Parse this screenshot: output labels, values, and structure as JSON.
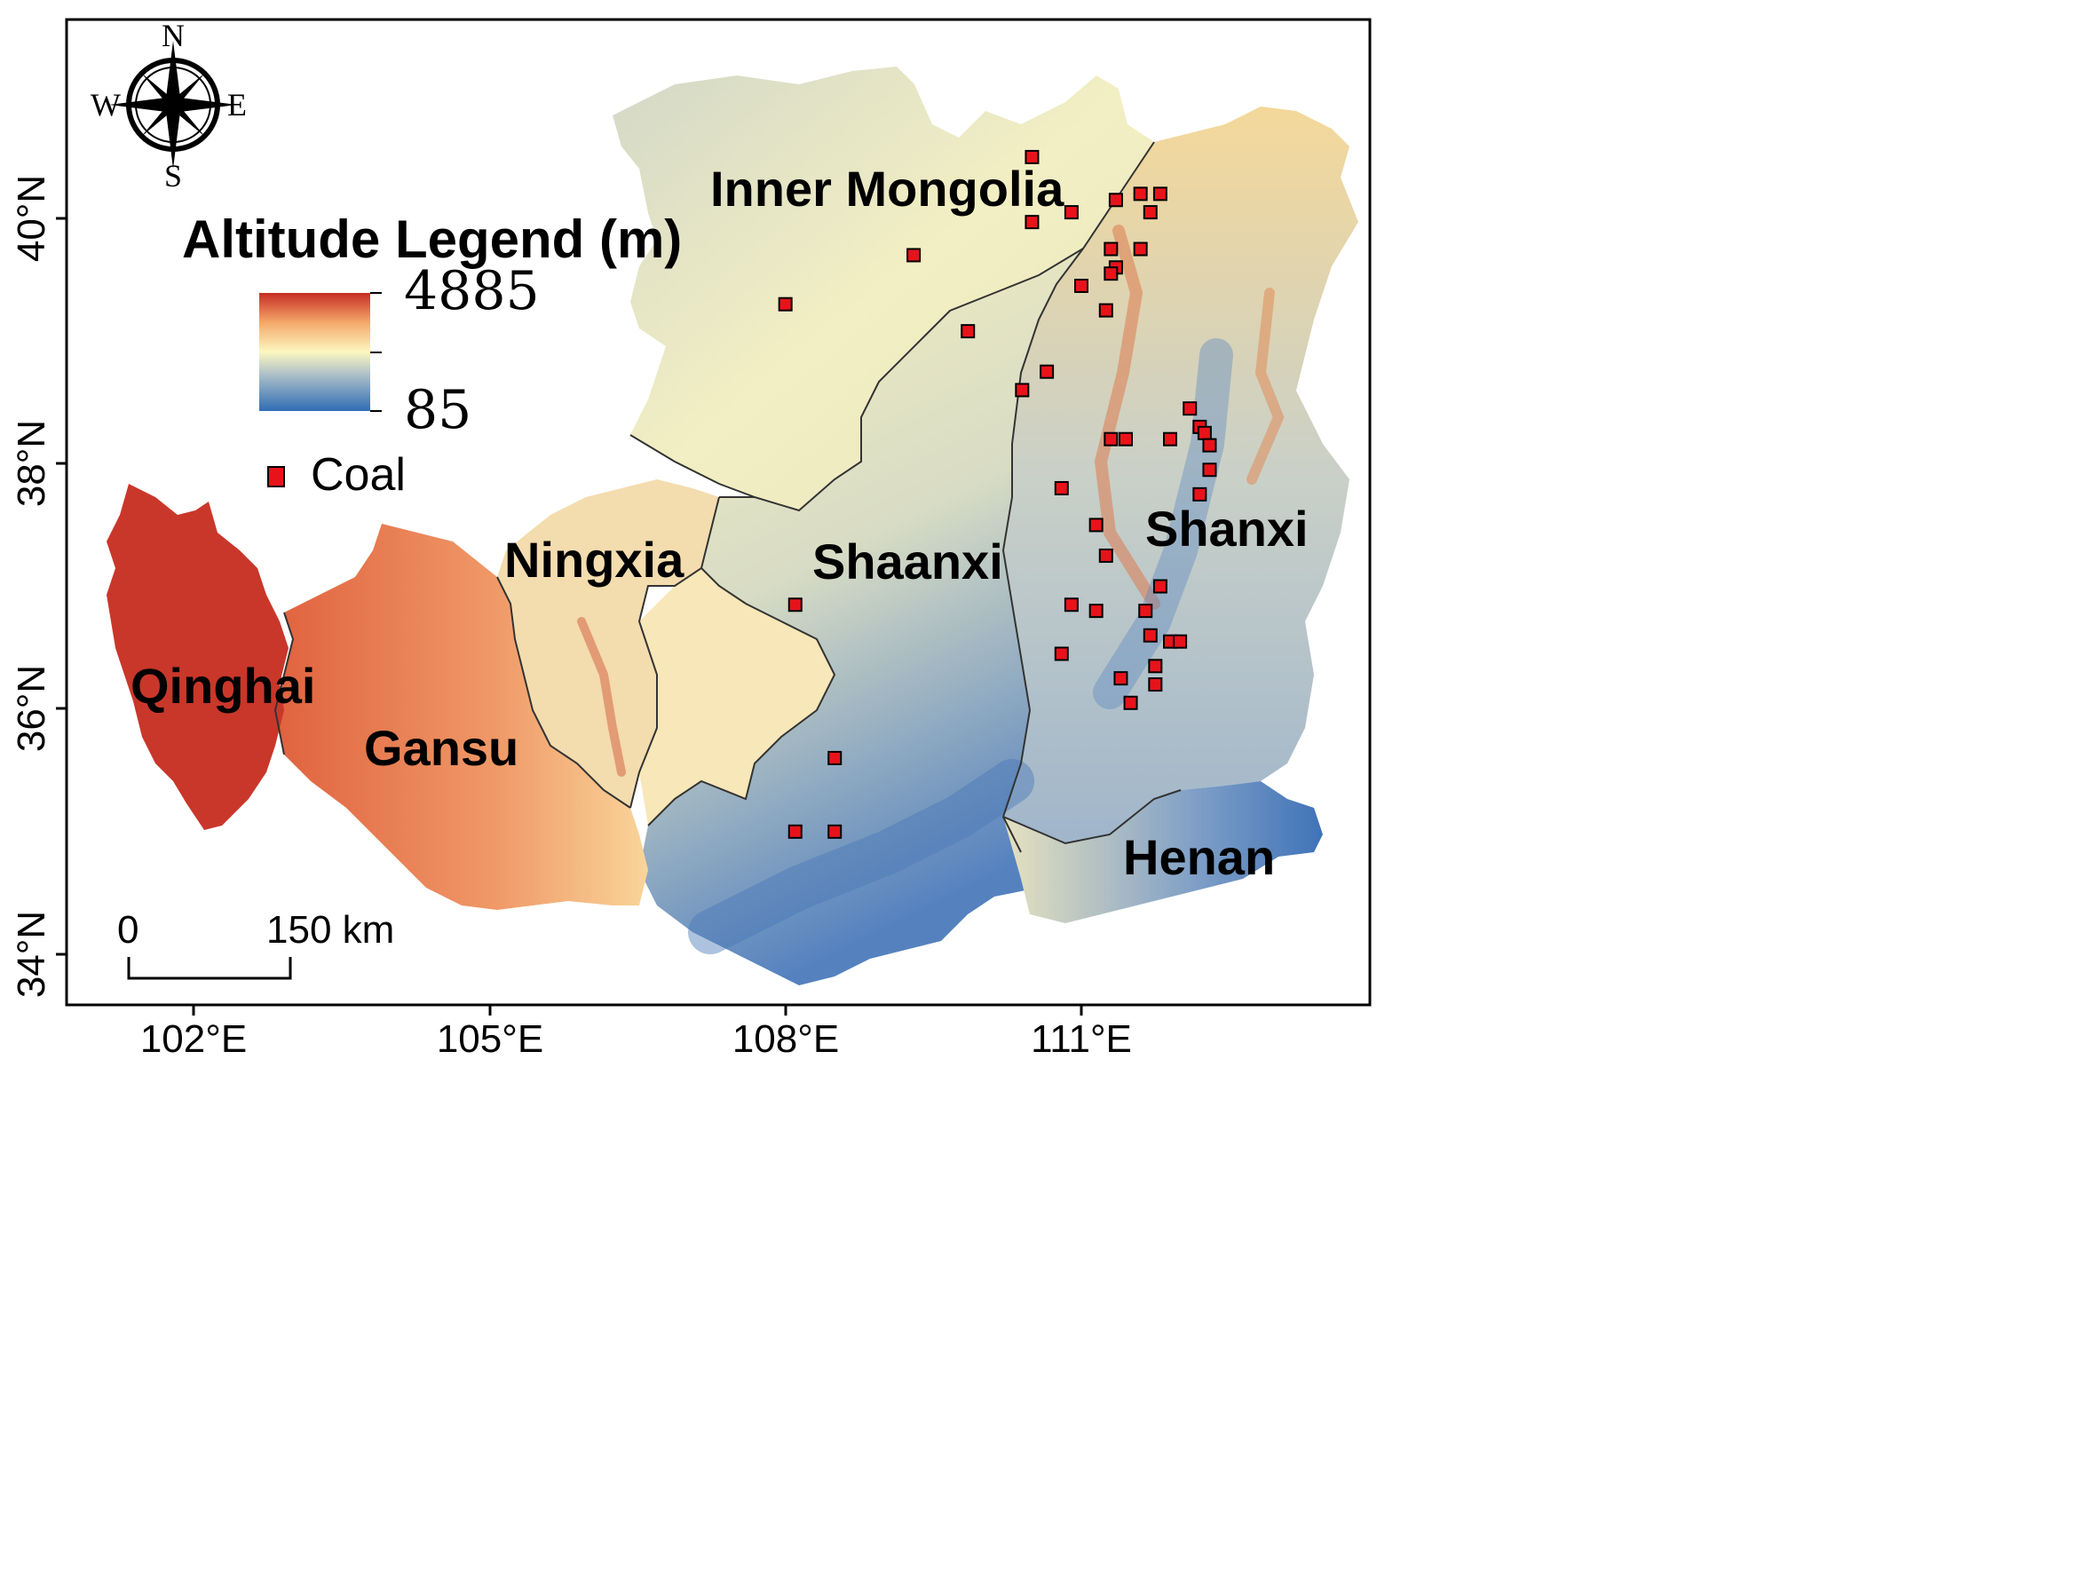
{
  "map": {
    "compass": {
      "n": "N",
      "s": "S",
      "e": "E",
      "w": "W",
      "icon": "compass-rose-icon"
    },
    "legend": {
      "title": "Altitude Legend (m)",
      "max": "4885",
      "min": "85",
      "coal_label": "Coal",
      "coal_color": "#e8131a",
      "ramp": [
        "#2f6db5",
        "#a9bdc8",
        "#fcf7c0",
        "#f4a86a",
        "#c72d24"
      ]
    },
    "scale_bar": {
      "start": "0",
      "end": "150 km"
    },
    "lon_ticks": [
      "102°E",
      "105°E",
      "108°E",
      "111°E"
    ],
    "lat_ticks": [
      "40°N",
      "38°N",
      "36°N",
      "34°N"
    ],
    "provinces": [
      "Inner Mongolia",
      "Shaanxi",
      "Shanxi",
      "Ningxia",
      "Qinghai",
      "Gansu",
      "Henan"
    ],
    "coal_sites": [
      {
        "lon": 110.5,
        "lat": 40.5
      },
      {
        "lon": 110.5,
        "lat": 39.97
      },
      {
        "lon": 110.9,
        "lat": 40.05
      },
      {
        "lon": 109.3,
        "lat": 39.7
      },
      {
        "lon": 108.0,
        "lat": 39.3
      },
      {
        "lon": 109.85,
        "lat": 39.08
      },
      {
        "lon": 110.4,
        "lat": 38.6
      },
      {
        "lon": 110.65,
        "lat": 38.75
      },
      {
        "lon": 111.0,
        "lat": 39.45
      },
      {
        "lon": 111.35,
        "lat": 39.6
      },
      {
        "lon": 110.8,
        "lat": 37.8
      },
      {
        "lon": 111.15,
        "lat": 37.5
      },
      {
        "lon": 111.25,
        "lat": 37.25
      },
      {
        "lon": 110.9,
        "lat": 36.85
      },
      {
        "lon": 111.15,
        "lat": 36.8
      },
      {
        "lon": 110.8,
        "lat": 36.45
      },
      {
        "lon": 108.1,
        "lat": 36.85
      },
      {
        "lon": 108.5,
        "lat": 35.6
      },
      {
        "lon": 108.1,
        "lat": 35.0
      },
      {
        "lon": 108.5,
        "lat": 35.0
      },
      {
        "lon": 111.35,
        "lat": 40.15
      },
      {
        "lon": 111.6,
        "lat": 40.2
      },
      {
        "lon": 111.8,
        "lat": 40.2
      },
      {
        "lon": 111.7,
        "lat": 40.05
      },
      {
        "lon": 111.3,
        "lat": 39.75
      },
      {
        "lon": 111.6,
        "lat": 39.75
      },
      {
        "lon": 111.3,
        "lat": 39.55
      },
      {
        "lon": 111.25,
        "lat": 39.25
      },
      {
        "lon": 111.3,
        "lat": 38.2
      },
      {
        "lon": 111.45,
        "lat": 38.2
      },
      {
        "lon": 111.9,
        "lat": 38.2
      },
      {
        "lon": 112.1,
        "lat": 38.45
      },
      {
        "lon": 112.2,
        "lat": 38.3
      },
      {
        "lon": 112.25,
        "lat": 38.25
      },
      {
        "lon": 112.3,
        "lat": 38.15
      },
      {
        "lon": 112.3,
        "lat": 37.95
      },
      {
        "lon": 112.2,
        "lat": 37.75
      },
      {
        "lon": 111.8,
        "lat": 37.0
      },
      {
        "lon": 111.65,
        "lat": 36.8
      },
      {
        "lon": 111.7,
        "lat": 36.6
      },
      {
        "lon": 111.9,
        "lat": 36.55
      },
      {
        "lon": 112.0,
        "lat": 36.55
      },
      {
        "lon": 111.75,
        "lat": 36.35
      },
      {
        "lon": 111.75,
        "lat": 36.2
      },
      {
        "lon": 111.4,
        "lat": 36.25
      },
      {
        "lon": 111.5,
        "lat": 36.05
      }
    ]
  }
}
